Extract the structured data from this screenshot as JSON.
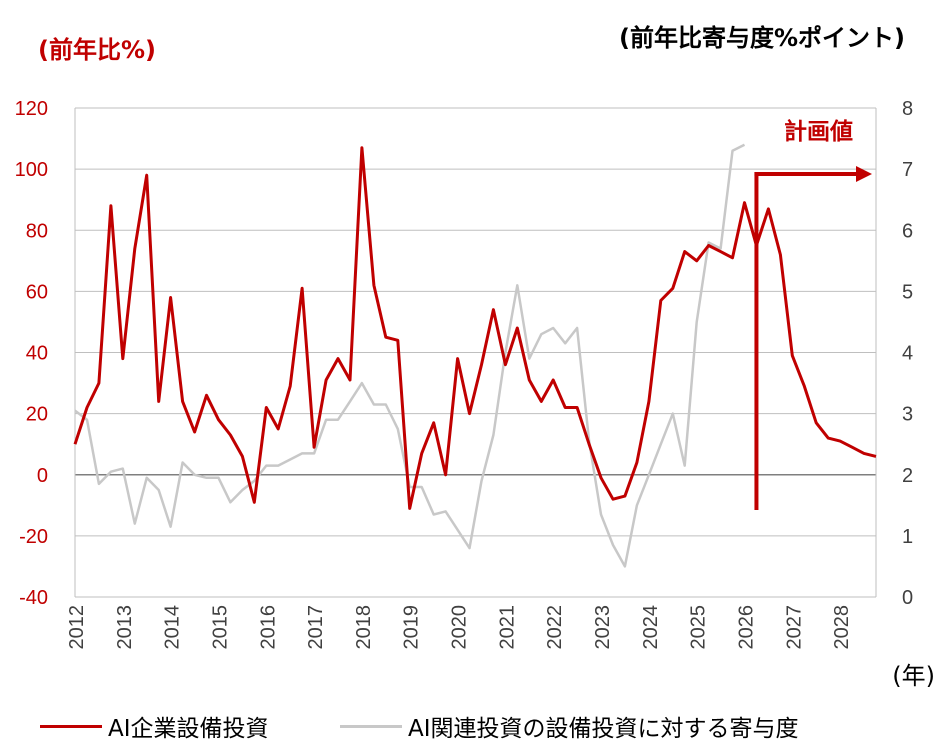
{
  "chart_data": {
    "type": "line",
    "ylabel_left": "(前年比%)",
    "ylabel_right": "(前年比寄与度%ポイント)",
    "x_unit": "(年)",
    "annotation": "計画値",
    "left_axis": {
      "min": -40,
      "max": 120,
      "step": 20,
      "ticks": [
        -40,
        -20,
        0,
        20,
        40,
        60,
        80,
        100,
        120
      ]
    },
    "right_axis": {
      "min": 0,
      "max": 8,
      "step": 1,
      "ticks": [
        0,
        1,
        2,
        3,
        4,
        5,
        6,
        7,
        8
      ]
    },
    "x_ticks": [
      "2012",
      "2013",
      "2014",
      "2015",
      "2016",
      "2017",
      "2018",
      "2019",
      "2020",
      "2021",
      "2022",
      "2023",
      "2024",
      "2025",
      "2026",
      "2027",
      "2028"
    ],
    "x_range": [
      2012.0,
      2028.75
    ],
    "plan_start": 2026.25,
    "grid": true,
    "legend_position": "bottom",
    "series": [
      {
        "name": "AI企業設備投資",
        "axis": "left",
        "color": "#c00000",
        "x": [
          2012.0,
          2012.25,
          2012.5,
          2012.75,
          2013.0,
          2013.25,
          2013.5,
          2013.75,
          2014.0,
          2014.25,
          2014.5,
          2014.75,
          2015.0,
          2015.25,
          2015.5,
          2015.75,
          2016.0,
          2016.25,
          2016.5,
          2016.75,
          2017.0,
          2017.25,
          2017.5,
          2017.75,
          2018.0,
          2018.25,
          2018.5,
          2018.75,
          2019.0,
          2019.25,
          2019.5,
          2019.75,
          2020.0,
          2020.25,
          2020.5,
          2020.75,
          2021.0,
          2021.25,
          2021.5,
          2021.75,
          2022.0,
          2022.25,
          2022.5,
          2022.75,
          2023.0,
          2023.25,
          2023.5,
          2023.75,
          2024.0,
          2024.25,
          2024.5,
          2024.75,
          2025.0,
          2025.25,
          2025.5,
          2025.75,
          2026.0,
          2026.25,
          2026.5,
          2026.75,
          2027.0,
          2027.25,
          2027.5,
          2027.75,
          2028.0,
          2028.25,
          2028.5,
          2028.75
        ],
        "values": [
          10,
          22,
          30,
          88,
          38,
          74,
          98,
          24,
          58,
          24,
          14,
          26,
          18,
          13,
          6,
          -9,
          22,
          15,
          29,
          61,
          9,
          31,
          38,
          31,
          107,
          62,
          45,
          44,
          -11,
          7,
          17,
          0,
          38,
          20,
          36,
          54,
          36,
          48,
          31,
          24,
          31,
          22,
          22,
          10,
          -1,
          -8,
          -7,
          4,
          24,
          57,
          61,
          73,
          70,
          75,
          73,
          71,
          89,
          75,
          87,
          72,
          39,
          29,
          17,
          12,
          11,
          9,
          7,
          6
        ]
      },
      {
        "name": "AI関連投資の設備投資に対する寄与度",
        "axis": "right",
        "color": "#c8c8c8",
        "x": [
          2012.0,
          2012.25,
          2012.5,
          2012.75,
          2013.0,
          2013.25,
          2013.5,
          2013.75,
          2014.0,
          2014.25,
          2014.5,
          2014.75,
          2015.0,
          2015.25,
          2015.5,
          2015.75,
          2016.0,
          2016.25,
          2016.5,
          2016.75,
          2017.0,
          2017.25,
          2017.5,
          2017.75,
          2018.0,
          2018.25,
          2018.5,
          2018.75,
          2019.0,
          2019.25,
          2019.5,
          2019.75,
          2020.0,
          2020.25,
          2020.5,
          2020.75,
          2021.0,
          2021.25,
          2021.5,
          2021.75,
          2022.0,
          2022.25,
          2022.5,
          2022.75,
          2023.0,
          2023.25,
          2023.5,
          2023.75,
          2024.0,
          2024.25,
          2024.5,
          2024.75,
          2025.0,
          2025.25,
          2025.5,
          2025.75,
          2026.0
        ],
        "values": [
          3.05,
          2.9,
          1.85,
          2.05,
          2.1,
          1.2,
          1.95,
          1.75,
          1.15,
          2.2,
          2.0,
          1.95,
          1.95,
          1.55,
          1.75,
          1.9,
          2.15,
          2.15,
          2.25,
          2.35,
          2.35,
          2.9,
          2.9,
          3.2,
          3.5,
          3.15,
          3.15,
          2.75,
          1.8,
          1.8,
          1.35,
          1.4,
          1.1,
          0.8,
          1.9,
          2.65,
          4.0,
          5.1,
          3.9,
          4.3,
          4.4,
          4.15,
          4.4,
          2.55,
          1.35,
          0.85,
          0.5,
          1.5,
          2.0,
          2.5,
          3.0,
          2.15,
          4.5,
          5.8,
          5.7,
          7.3,
          7.4
        ]
      }
    ]
  }
}
